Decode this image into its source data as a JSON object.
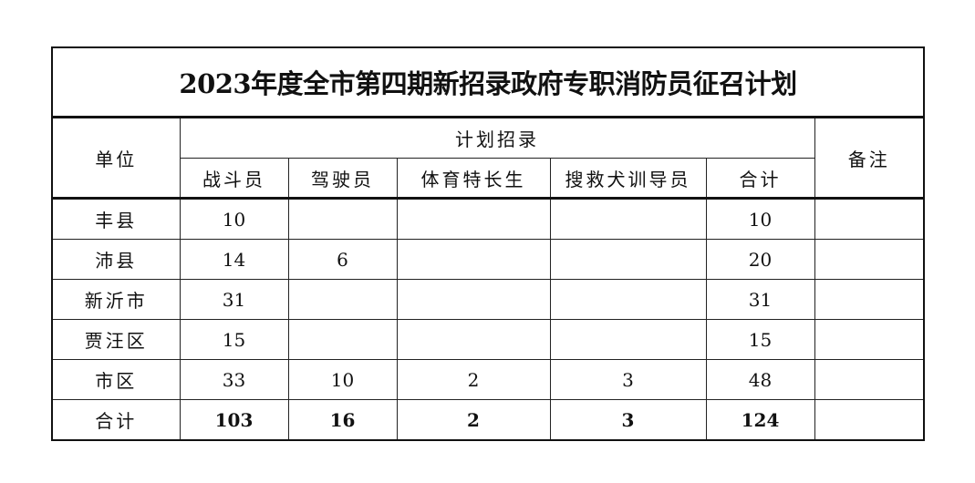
{
  "title": "2023年度全市第四期新招录政府专职消防员征召计划",
  "headers": {
    "unit": "单位",
    "plan": "计划招录",
    "remark": "备注",
    "columns": [
      "战斗员",
      "驾驶员",
      "体育特长生",
      "搜救犬训导员",
      "合计"
    ]
  },
  "rows": [
    {
      "unit": "丰县",
      "values": [
        "10",
        "",
        "",
        "",
        "10"
      ],
      "remark": ""
    },
    {
      "unit": "沛县",
      "values": [
        "14",
        "6",
        "",
        "",
        "20"
      ],
      "remark": ""
    },
    {
      "unit": "新沂市",
      "values": [
        "31",
        "",
        "",
        "",
        "31"
      ],
      "remark": ""
    },
    {
      "unit": "贾汪区",
      "values": [
        "15",
        "",
        "",
        "",
        "15"
      ],
      "remark": ""
    },
    {
      "unit": "市区",
      "values": [
        "33",
        "10",
        "2",
        "3",
        "48"
      ],
      "remark": ""
    }
  ],
  "total": {
    "unit": "合计",
    "values": [
      "103",
      "16",
      "2",
      "3",
      "124"
    ],
    "remark": ""
  }
}
